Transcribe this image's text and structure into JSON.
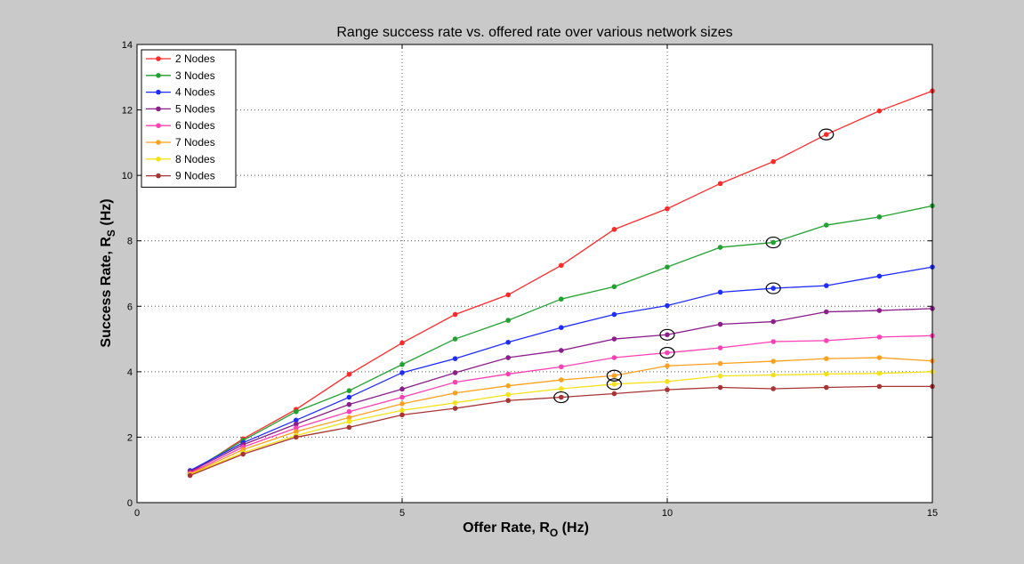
{
  "colors": {
    "figure_bg": "#c9c9c9",
    "axes_bg": "#ffffff",
    "grid": "#555555",
    "marker_circle": "#000000"
  },
  "chart_data": {
    "type": "line",
    "title": "Range success rate vs. offered rate over various network sizes",
    "xlabel_main": "Offer Rate, R",
    "xlabel_sub": "O",
    "xlabel_unit": " (Hz)",
    "ylabel_main": "Success Rate, R",
    "ylabel_sub": "S",
    "ylabel_unit": " (Hz)",
    "xlim": [
      0,
      15
    ],
    "ylim": [
      0,
      14
    ],
    "xticks": [
      0,
      5,
      10,
      15
    ],
    "yticks": [
      0,
      2,
      4,
      6,
      8,
      10,
      12,
      14
    ],
    "grid": true,
    "legend_position": "top-left",
    "x": [
      1,
      2,
      3,
      4,
      5,
      6,
      7,
      8,
      9,
      10,
      11,
      12,
      13,
      14,
      15
    ],
    "series": [
      {
        "name": "2 Nodes",
        "color": "#ff2a2a",
        "values": [
          0.9,
          1.95,
          2.85,
          3.92,
          4.88,
          5.75,
          6.35,
          7.25,
          8.35,
          8.98,
          9.75,
          10.42,
          11.25,
          11.97,
          12.58
        ]
      },
      {
        "name": "3 Nodes",
        "color": "#21a12f",
        "values": [
          0.95,
          1.9,
          2.78,
          3.42,
          4.22,
          5.0,
          5.57,
          6.22,
          6.6,
          7.2,
          7.8,
          7.95,
          8.48,
          8.73,
          9.07
        ]
      },
      {
        "name": "4 Nodes",
        "color": "#1f2cff",
        "values": [
          0.98,
          1.83,
          2.52,
          3.22,
          3.97,
          4.4,
          4.9,
          5.35,
          5.75,
          6.02,
          6.43,
          6.55,
          6.63,
          6.92,
          7.2
        ]
      },
      {
        "name": "5 Nodes",
        "color": "#8b1e8b",
        "values": [
          0.95,
          1.77,
          2.4,
          3.0,
          3.47,
          3.97,
          4.43,
          4.65,
          5.0,
          5.13,
          5.45,
          5.53,
          5.83,
          5.87,
          5.93
        ]
      },
      {
        "name": "6 Nodes",
        "color": "#ff3fb4",
        "values": [
          0.9,
          1.7,
          2.28,
          2.78,
          3.22,
          3.68,
          3.93,
          4.15,
          4.43,
          4.58,
          4.73,
          4.92,
          4.95,
          5.06,
          5.1
        ]
      },
      {
        "name": "7 Nodes",
        "color": "#ffa01f",
        "values": [
          0.87,
          1.62,
          2.17,
          2.6,
          3.02,
          3.35,
          3.57,
          3.75,
          3.88,
          4.18,
          4.25,
          4.32,
          4.4,
          4.43,
          4.33
        ]
      },
      {
        "name": "8 Nodes",
        "color": "#f5e21a",
        "values": [
          0.85,
          1.53,
          2.05,
          2.48,
          2.82,
          3.05,
          3.3,
          3.48,
          3.62,
          3.7,
          3.87,
          3.9,
          3.93,
          3.95,
          4.0
        ]
      },
      {
        "name": "9 Nodes",
        "color": "#a83434",
        "values": [
          0.83,
          1.48,
          2.0,
          2.3,
          2.68,
          2.88,
          3.12,
          3.22,
          3.33,
          3.45,
          3.52,
          3.48,
          3.52,
          3.55,
          3.55
        ]
      }
    ],
    "highlighted_points": [
      {
        "series": "2 Nodes",
        "x": 13,
        "y": 11.25
      },
      {
        "series": "3 Nodes",
        "x": 12,
        "y": 7.95
      },
      {
        "series": "4 Nodes",
        "x": 12,
        "y": 6.55
      },
      {
        "series": "5 Nodes",
        "x": 10,
        "y": 5.13
      },
      {
        "series": "6 Nodes",
        "x": 10,
        "y": 4.58
      },
      {
        "series": "7 Nodes",
        "x": 9,
        "y": 3.88
      },
      {
        "series": "8 Nodes",
        "x": 9,
        "y": 3.62
      },
      {
        "series": "9 Nodes",
        "x": 8,
        "y": 3.22
      }
    ]
  }
}
